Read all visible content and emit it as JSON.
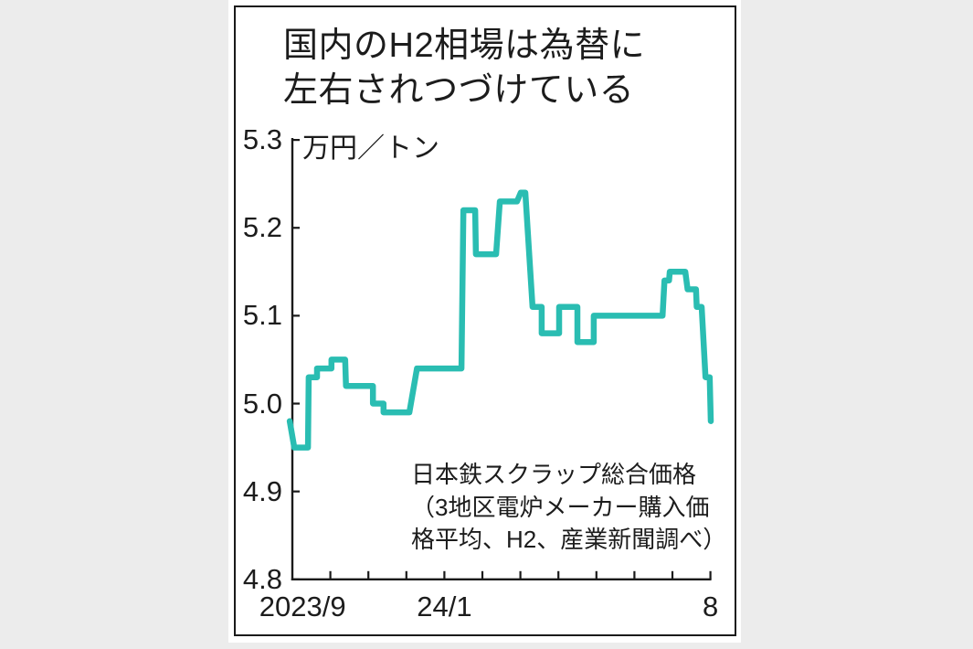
{
  "figure": {
    "title": "国内のH2相場は為替に\n左右されつづけている",
    "annotation": "日本鉄スクラップ総合価格\n（3地区電炉メーカー購入価\n格平均、H2、産業新聞調べ）"
  },
  "chart_data": {
    "type": "line",
    "line_style": "step",
    "title": "国内のH2相場は為替に左右されつづけている",
    "ylabel": "万円／トン",
    "ylim": [
      4.8,
      5.3
    ],
    "y_ticks": [
      5.3,
      5.2,
      5.1,
      5.0,
      4.9,
      4.8
    ],
    "y_tick_labels": [
      "5.3",
      "5.2",
      "5.1",
      "5.0",
      "4.9",
      "4.8"
    ],
    "x_range_months": 11,
    "x_tick_every_month": 1,
    "x_tick_labels": [
      {
        "label": "2023/9",
        "t": 0.27
      },
      {
        "label": "24/1",
        "t": 4.0
      },
      {
        "label": "8",
        "t": 11.0
      }
    ],
    "grid": false,
    "legend": "none",
    "annotation": "日本鉄スクラップ総合価格（3地区電炉メーカー購入価格平均、H2、産業新聞調べ）",
    "series": [
      {
        "name": "日本鉄スクラップ総合価格（H2）",
        "color": "#2abdb2",
        "unit": "万円/トン",
        "points": [
          [
            -0.07,
            4.98
          ],
          [
            0.05,
            4.95
          ],
          [
            0.41,
            4.95
          ],
          [
            0.43,
            5.03
          ],
          [
            0.65,
            5.03
          ],
          [
            0.65,
            5.04
          ],
          [
            1.03,
            5.04
          ],
          [
            1.03,
            5.05
          ],
          [
            1.39,
            5.05
          ],
          [
            1.41,
            5.02
          ],
          [
            2.12,
            5.02
          ],
          [
            2.12,
            5.0
          ],
          [
            2.4,
            5.0
          ],
          [
            2.4,
            4.99
          ],
          [
            3.08,
            4.99
          ],
          [
            3.28,
            5.04
          ],
          [
            4.45,
            5.04
          ],
          [
            4.5,
            5.22
          ],
          [
            4.81,
            5.22
          ],
          [
            4.83,
            5.17
          ],
          [
            5.36,
            5.17
          ],
          [
            5.46,
            5.23
          ],
          [
            5.91,
            5.23
          ],
          [
            6.01,
            5.24
          ],
          [
            6.13,
            5.24
          ],
          [
            6.32,
            5.11
          ],
          [
            6.56,
            5.11
          ],
          [
            6.56,
            5.08
          ],
          [
            7.02,
            5.08
          ],
          [
            7.02,
            5.11
          ],
          [
            7.5,
            5.11
          ],
          [
            7.5,
            5.07
          ],
          [
            7.93,
            5.07
          ],
          [
            7.93,
            5.1
          ],
          [
            9.74,
            5.1
          ],
          [
            9.79,
            5.14
          ],
          [
            9.91,
            5.14
          ],
          [
            9.93,
            5.15
          ],
          [
            10.34,
            5.15
          ],
          [
            10.4,
            5.13
          ],
          [
            10.62,
            5.13
          ],
          [
            10.64,
            5.11
          ],
          [
            10.77,
            5.11
          ],
          [
            10.87,
            5.03
          ],
          [
            10.98,
            5.03
          ],
          [
            11.01,
            4.98
          ]
        ]
      }
    ]
  },
  "colors": {
    "background": "#ececec",
    "panel": "#ffffff",
    "border": "#1a1a1a",
    "axis": "#1a1a1a",
    "text": "#1c1c1c",
    "line": "#2abdb2"
  }
}
